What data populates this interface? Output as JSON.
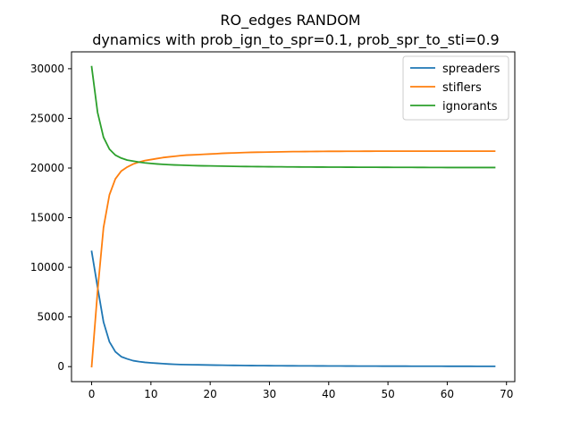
{
  "chart_data": {
    "type": "line",
    "title": "RO_edges RANDOM",
    "subtitle": "dynamics with prob_ign_to_spr=0.1, prob_spr_to_sti=0.9",
    "xlabel": "",
    "ylabel": "",
    "xlim": [
      -3.4,
      71.4
    ],
    "ylim": [
      -1511,
      31700
    ],
    "xticks": [
      0,
      10,
      20,
      30,
      40,
      50,
      60,
      70
    ],
    "yticks": [
      0,
      5000,
      10000,
      15000,
      20000,
      25000,
      30000
    ],
    "grid": false,
    "legend_position": "top-right",
    "x": [
      0,
      1,
      2,
      3,
      4,
      5,
      6,
      7,
      8,
      9,
      10,
      11,
      12,
      13,
      14,
      15,
      16,
      17,
      18,
      19,
      20,
      21,
      22,
      23,
      24,
      25,
      26,
      27,
      28,
      29,
      30,
      31,
      32,
      33,
      34,
      35,
      36,
      37,
      38,
      39,
      40,
      41,
      42,
      43,
      44,
      45,
      46,
      47,
      48,
      49,
      50,
      51,
      52,
      53,
      54,
      55,
      56,
      57,
      58,
      59,
      60,
      61,
      62,
      63,
      64,
      65,
      66,
      67,
      68
    ],
    "series": [
      {
        "name": "spreaders",
        "color": "#1f77b4",
        "values": [
          11600,
          8000,
          4500,
          2500,
          1500,
          1000,
          780,
          600,
          500,
          430,
          380,
          340,
          300,
          260,
          230,
          210,
          200,
          190,
          180,
          170,
          160,
          150,
          140,
          130,
          125,
          120,
          110,
          105,
          100,
          95,
          90,
          88,
          85,
          82,
          80,
          78,
          75,
          72,
          70,
          68,
          66,
          64,
          62,
          60,
          58,
          56,
          54,
          52,
          50,
          49,
          48,
          47,
          46,
          45,
          44,
          43,
          42,
          41,
          40,
          39,
          38,
          37,
          36,
          35,
          34,
          33,
          32,
          31,
          30
        ]
      },
      {
        "name": "stiflers",
        "color": "#ff7f0e",
        "values": [
          0,
          7600,
          14000,
          17300,
          18900,
          19700,
          20100,
          20400,
          20600,
          20750,
          20850,
          20950,
          21050,
          21120,
          21180,
          21250,
          21300,
          21320,
          21350,
          21380,
          21410,
          21440,
          21480,
          21500,
          21520,
          21540,
          21560,
          21580,
          21590,
          21600,
          21610,
          21620,
          21630,
          21640,
          21650,
          21655,
          21660,
          21665,
          21670,
          21675,
          21680,
          21682,
          21684,
          21686,
          21688,
          21690,
          21692,
          21694,
          21696,
          21698,
          21700,
          21700,
          21700,
          21700,
          21700,
          21700,
          21700,
          21700,
          21700,
          21700,
          21700,
          21700,
          21700,
          21700,
          21700,
          21700,
          21700,
          21700,
          21700
        ]
      },
      {
        "name": "ignorants",
        "color": "#2ca02c",
        "values": [
          30200,
          25600,
          23100,
          21900,
          21300,
          21000,
          20800,
          20700,
          20600,
          20520,
          20460,
          20410,
          20370,
          20340,
          20310,
          20290,
          20270,
          20250,
          20230,
          20220,
          20210,
          20200,
          20190,
          20180,
          20170,
          20160,
          20150,
          20145,
          20140,
          20135,
          20130,
          20125,
          20120,
          20115,
          20110,
          20105,
          20100,
          20098,
          20096,
          20094,
          20092,
          20090,
          20088,
          20086,
          20084,
          20082,
          20080,
          20078,
          20076,
          20074,
          20072,
          20070,
          20068,
          20066,
          20064,
          20062,
          20060,
          20058,
          20056,
          20054,
          20052,
          20050,
          20050,
          20050,
          20050,
          20050,
          20050,
          20050,
          20050
        ]
      }
    ]
  }
}
